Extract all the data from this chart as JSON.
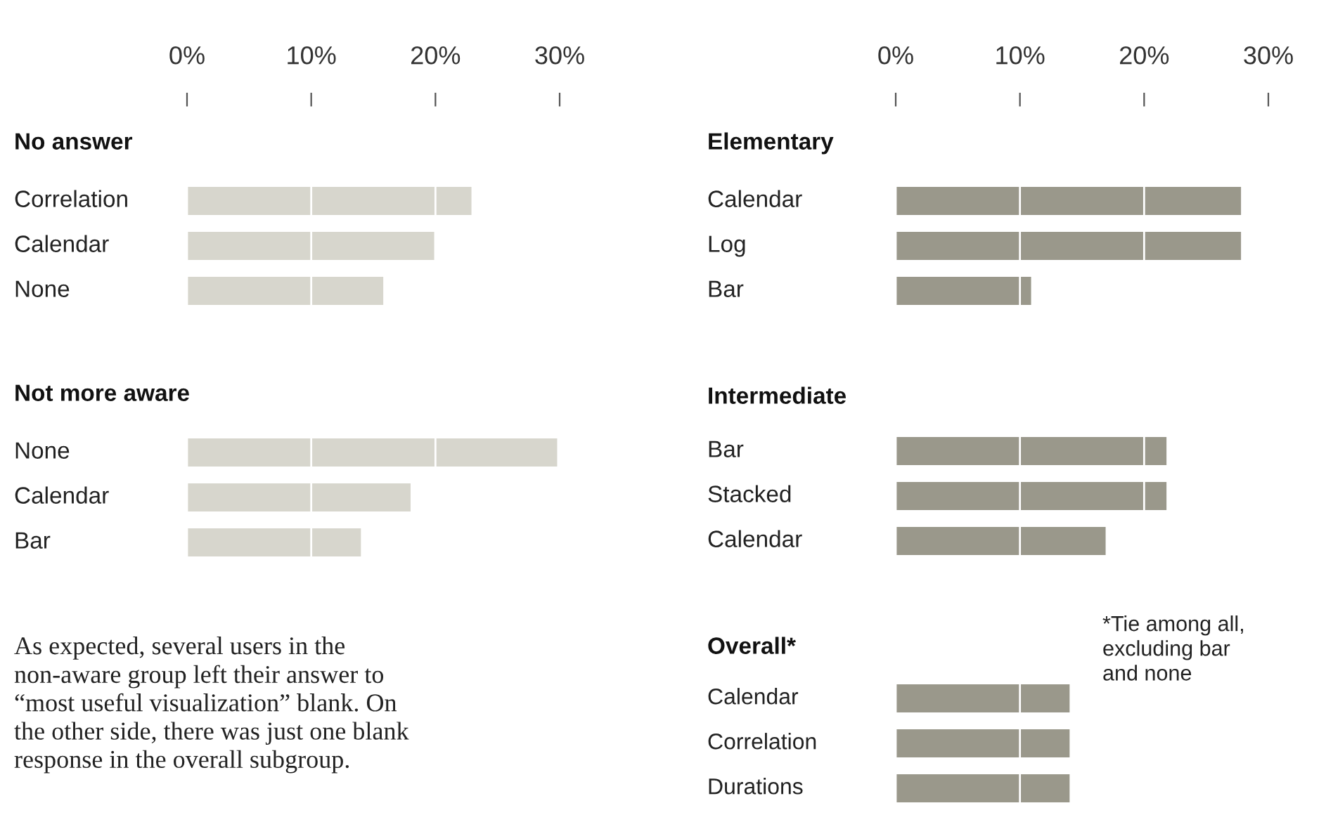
{
  "chart_data": [
    {
      "type": "bar",
      "orientation": "horizontal",
      "title": "No answer",
      "categories": [
        "Correlation",
        "Calendar",
        "None"
      ],
      "values": [
        22.9,
        19.9,
        15.8
      ],
      "color": "#d7d6cd",
      "xlim": [
        0,
        30
      ],
      "xticks": [
        {
          "value": 0,
          "label": "0%"
        },
        {
          "value": 10,
          "label": "10%"
        },
        {
          "value": 20,
          "label": "20%"
        },
        {
          "value": 30,
          "label": "30%"
        }
      ],
      "grid": "x",
      "tick_labels": "x"
    },
    {
      "type": "bar",
      "orientation": "horizontal",
      "title": "Not more aware",
      "categories": [
        "None",
        "Calendar",
        "Bar"
      ],
      "values": [
        29.8,
        18.0,
        14.0
      ],
      "color": "#d7d6cd",
      "xlim": [
        0,
        30
      ],
      "xticks": [
        0,
        10,
        20,
        30
      ],
      "grid": "x",
      "tick_labels": false,
      "annotations": [
        "As expected, several users in the\nnon-aware group left their answer to\n“most useful visualization” blank. On\nthe other side, there was just one blank\nresponse in the overall subgroup."
      ]
    },
    {
      "type": "bar",
      "orientation": "horizontal",
      "title": "Elementary",
      "categories": [
        "Calendar",
        "Log",
        "Bar"
      ],
      "values": [
        27.8,
        27.8,
        10.9
      ],
      "color": "#9a988b",
      "xlim": [
        0,
        30
      ],
      "xticks": [
        {
          "value": 0,
          "label": "0%"
        },
        {
          "value": 10,
          "label": "10%"
        },
        {
          "value": 20,
          "label": "20%"
        },
        {
          "value": 30,
          "label": "30%"
        }
      ],
      "grid": "x",
      "tick_labels": "x"
    },
    {
      "type": "bar",
      "orientation": "horizontal",
      "title": "Intermediate",
      "categories": [
        "Bar",
        "Stacked",
        "Calendar"
      ],
      "values": [
        21.8,
        21.8,
        16.9
      ],
      "color": "#9a988b",
      "xlim": [
        0,
        30
      ],
      "xticks": [
        0,
        10,
        20,
        30
      ],
      "grid": "x",
      "tick_labels": false
    },
    {
      "type": "bar",
      "orientation": "horizontal",
      "title": "Overall*",
      "categories": [
        "Calendar",
        "Correlation",
        "Durations"
      ],
      "values": [
        14.0,
        14.0,
        14.0
      ],
      "color": "#9a988b",
      "xlim": [
        0,
        30
      ],
      "xticks": [
        0,
        10,
        20,
        30
      ],
      "grid": "x",
      "tick_labels": false,
      "annotations": [
        "*Tie among all,\nexcluding bar\nand none"
      ]
    }
  ]
}
